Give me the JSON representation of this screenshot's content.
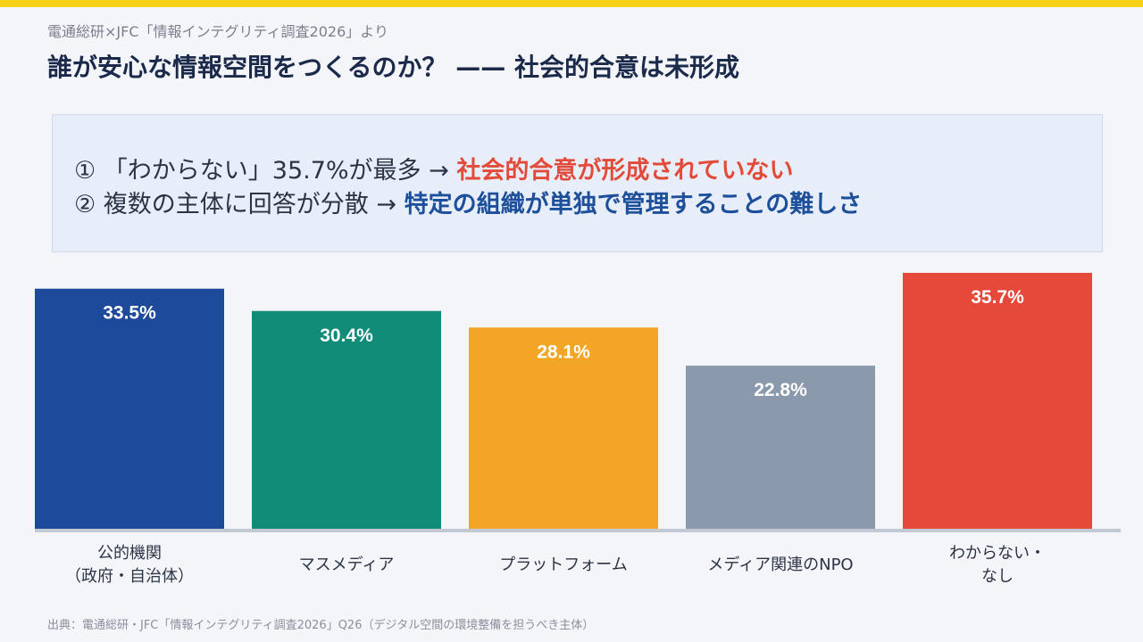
{
  "header": {
    "source": "電通総研×JFC「情報インテグリティ調査2026」より",
    "title": "誰が安心な情報空間をつくるのか？ —— 社会的合意は未形成"
  },
  "callout": {
    "line1_prefix": "① 「わからない」35.7%が最多 → ",
    "line1_highlight": "社会的合意が形成されていない",
    "line2_prefix": "② 複数の主体に回答が分散 → ",
    "line2_highlight": "特定の組織が単独で管理することの難しさ"
  },
  "footer": {
    "source": "出典：電通総研・JFC「情報インテグリティ調査2026」Q26（デジタル空間の環境整備を担うべき主体）"
  },
  "colors": {
    "accent_yellow": "#f7d117",
    "title": "#1b2a4a",
    "highlight_red": "#e24b3a",
    "highlight_blue": "#1d4f9b"
  },
  "chart_data": {
    "type": "bar",
    "categories": [
      "公的機関\n（政府・自治体）",
      "マスメディア",
      "プラットフォーム",
      "メディア関連のNPO",
      "わからない・\nなし"
    ],
    "values": [
      33.5,
      30.4,
      28.1,
      22.8,
      35.7
    ],
    "data_labels": [
      "33.5%",
      "30.4%",
      "28.1%",
      "22.8%",
      "35.7%"
    ],
    "colors": [
      "#1d4a9a",
      "#108c78",
      "#f3a626",
      "#8a9aac",
      "#e6493a"
    ],
    "ylim": [
      0,
      35.7
    ],
    "grid": false,
    "legend": "none"
  }
}
